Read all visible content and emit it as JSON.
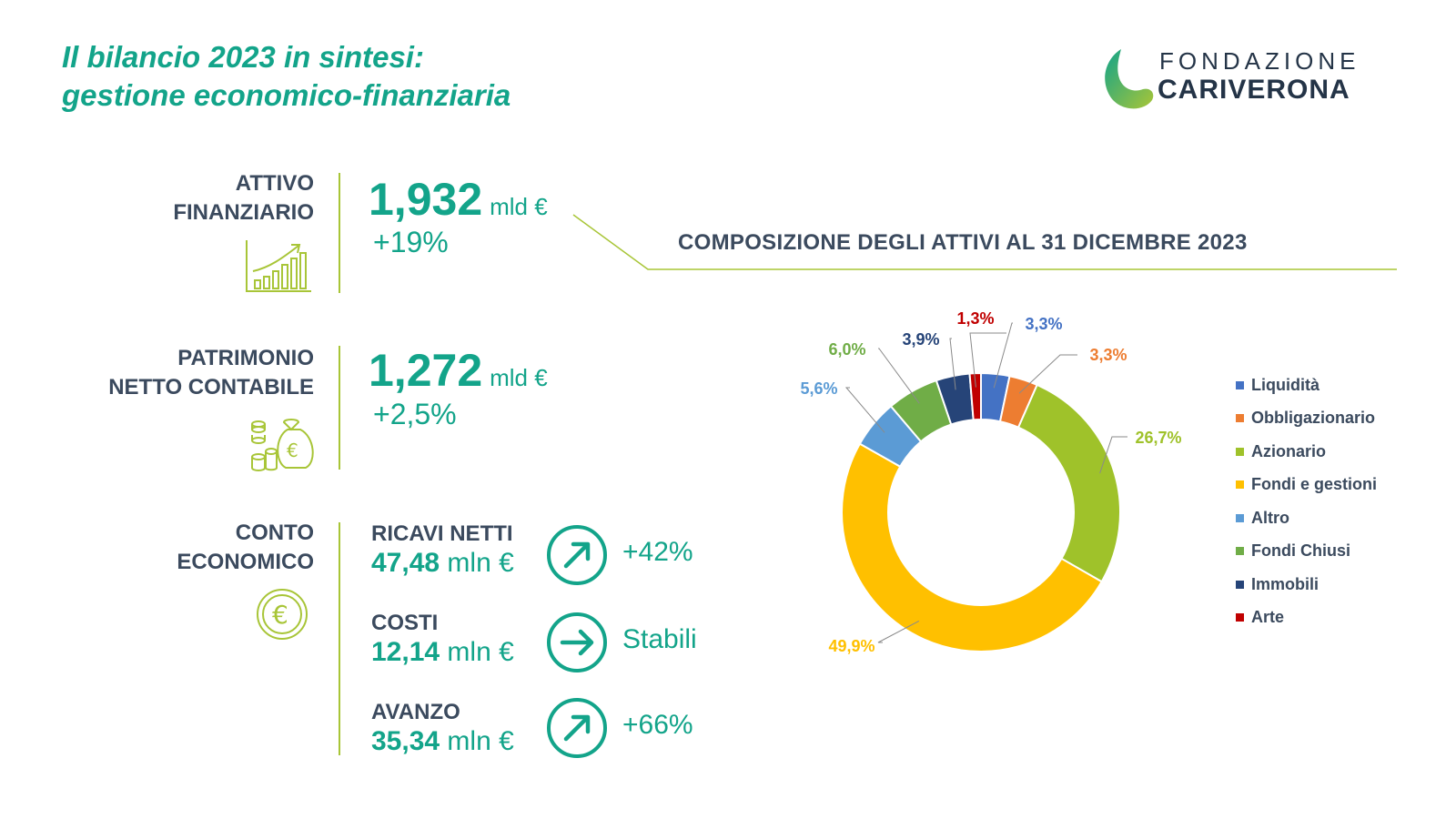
{
  "header": {
    "title_line1": "Il bilancio 2023 in sintesi:",
    "title_line2": "gestione economico-finanziaria"
  },
  "logo": {
    "line1": "FONDAZIONE",
    "line2": "CARIVERONA"
  },
  "attivo": {
    "label_line1": "ATTIVO",
    "label_line2": "FINANZIARIO",
    "value": "1,932",
    "unit": "mld €",
    "change": "+19%"
  },
  "patrimonio": {
    "label_line1": "PATRIMONIO",
    "label_line2": "NETTO CONTABILE",
    "value": "1,272",
    "unit": "mld €",
    "change": "+2,5%"
  },
  "conto": {
    "label_line1": "CONTO",
    "label_line2": "ECONOMICO",
    "items": [
      {
        "label": "RICAVI NETTI",
        "value": "47,48",
        "unit": "mln €",
        "trend": "+42%",
        "direction": "up"
      },
      {
        "label": "COSTI",
        "value": "12,14",
        "unit": "mln €",
        "trend": "Stabili",
        "direction": "flat"
      },
      {
        "label": "AVANZO",
        "value": "35,34",
        "unit": "mln €",
        "trend": "+66%",
        "direction": "up"
      }
    ]
  },
  "colors": {
    "teal": "#13a48a",
    "lime": "#a8c537",
    "navy": "#3b4a5e"
  },
  "chart_data": {
    "type": "pie",
    "variant": "donut",
    "title": "COMPOSIZIONE DEGLI ATTIVI AL 31 DICEMBRE 2023",
    "legend_position": "right",
    "categories": [
      "Liquidità",
      "Obbligazionario",
      "Azionario",
      "Fondi e gestioni",
      "Altro",
      "Fondi Chiusi",
      "Immobili",
      "Arte"
    ],
    "values": [
      3.3,
      3.3,
      26.7,
      49.9,
      5.6,
      6.0,
      3.9,
      1.3
    ],
    "labels": [
      "3,3%",
      "3,3%",
      "26,7%",
      "49,9%",
      "5,6%",
      "6,0%",
      "3,9%",
      "1,3%"
    ],
    "colors": [
      "#4472c4",
      "#ed7d31",
      "#9fc22a",
      "#ffc000",
      "#5b9bd5",
      "#70ad47",
      "#264478",
      "#c00000"
    ]
  }
}
